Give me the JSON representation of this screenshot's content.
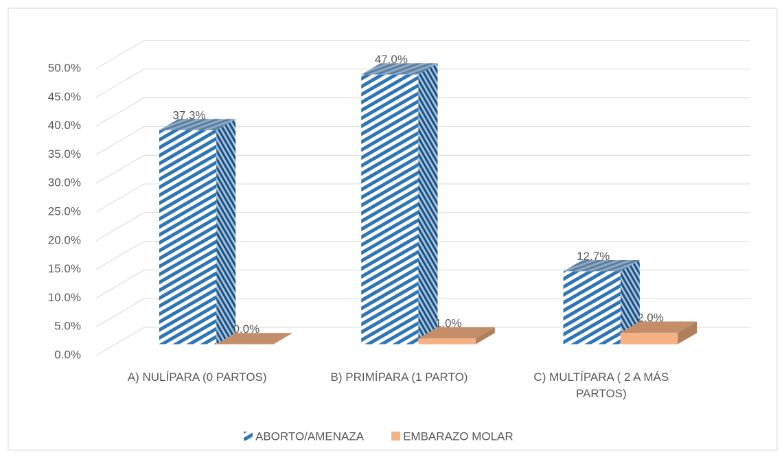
{
  "chart_data": {
    "type": "bar3d",
    "categories": [
      "A) NULÍPARA (0 PARTOS)",
      "B) PRIMÍPARA (1 PARTO)",
      "C) MULTÍPARA ( 2 A MÁS PARTOS)"
    ],
    "series": [
      {
        "name": "ABORTO/AMENAZA",
        "color": "#2e75b6",
        "values": [
          37.3,
          47.0,
          12.7
        ],
        "value_labels": [
          "37.3%",
          "47.0%",
          "12.7%"
        ]
      },
      {
        "name": "EMBARAZO MOLAR",
        "color": "#f4b183",
        "values": [
          0.0,
          1.0,
          2.0
        ],
        "value_labels": [
          "0.0%",
          "1.0%",
          "2.0%"
        ]
      }
    ],
    "ylim": [
      0,
      50
    ],
    "yticks": [
      {
        "value": 0,
        "label": "0.0%"
      },
      {
        "value": 5,
        "label": "5.0%"
      },
      {
        "value": 10,
        "label": "10.0%"
      },
      {
        "value": 15,
        "label": "15.0%"
      },
      {
        "value": 20,
        "label": "20.0%"
      },
      {
        "value": 25,
        "label": "25.0%"
      },
      {
        "value": 30,
        "label": "30.0%"
      },
      {
        "value": 35,
        "label": "35.0%"
      },
      {
        "value": 40,
        "label": "40.0%"
      },
      {
        "value": 45,
        "label": "45.0%"
      },
      {
        "value": 50,
        "label": "50.0%"
      }
    ],
    "grid": true,
    "legend": "bottom"
  }
}
